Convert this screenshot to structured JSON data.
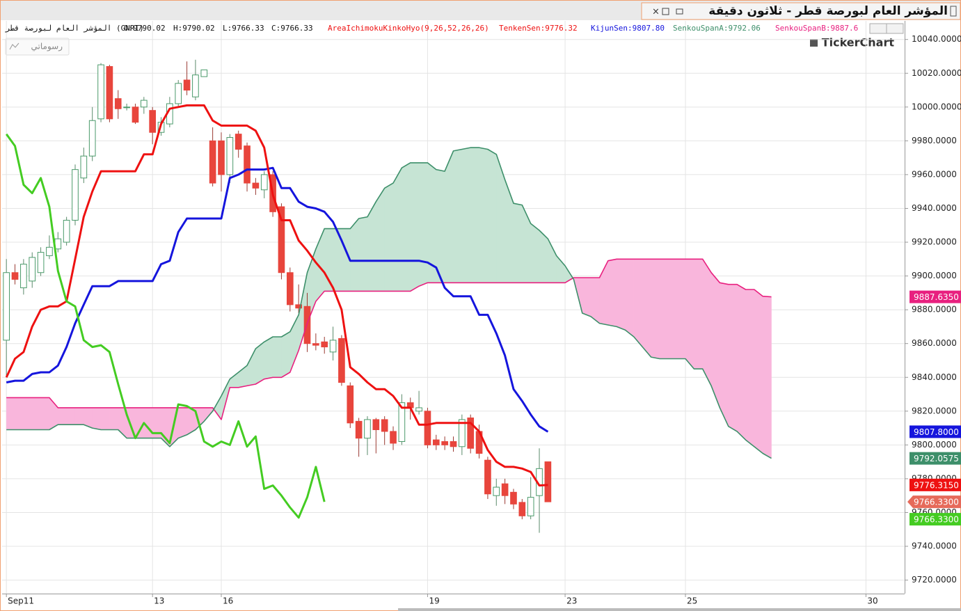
{
  "chart_data": {
    "type": "candlestick",
    "title": "المؤشر العام لبورصة قطر - ثلاثون دقيقة",
    "button": "رسوماتي",
    "logo": "TickerChart",
    "info": [
      "المؤشر العام لبورصة قطر (GNRI)",
      "O:9790.02",
      "H:9790.02",
      "L:9766.33",
      "C:9766.33"
    ],
    "indicator": "AreaIchimokuKinkoHyo(9,26,52,26,26)",
    "indicator_color": "#ee1111",
    "up_color": "#4a9a6a",
    "down_color": "#e8453c",
    "cloud_colors": {
      "up": "#c6e4d4",
      "down": "#f9b6dc"
    },
    "grid": true,
    "xlim": [
      -0.5,
      104.5
    ],
    "ylim": [
      9712,
      10051
    ],
    "xticks": [
      {
        "value": 0,
        "label": "Sep11"
      },
      {
        "value": 17,
        "label": "13"
      },
      {
        "value": 25,
        "label": "16"
      },
      {
        "value": 49,
        "label": "19"
      },
      {
        "value": 65,
        "label": "23"
      },
      {
        "value": 79,
        "label": "25"
      },
      {
        "value": 100,
        "label": "30"
      }
    ],
    "yticks": [
      {
        "value": 9720,
        "label": "9720.0000"
      },
      {
        "value": 9740,
        "label": "9740.0000"
      },
      {
        "value": 9760,
        "label": "9760.0000"
      },
      {
        "value": 9780,
        "label": "9780.0000"
      },
      {
        "value": 9800,
        "label": "9800.0000"
      },
      {
        "value": 9820,
        "label": "9820.0000"
      },
      {
        "value": 9840,
        "label": "9840.0000"
      },
      {
        "value": 9860,
        "label": "9860.0000"
      },
      {
        "value": 9880,
        "label": "9880.0000"
      },
      {
        "value": 9900,
        "label": "9900.0000"
      },
      {
        "value": 9920,
        "label": "9920.0000"
      },
      {
        "value": 9940,
        "label": "9940.0000"
      },
      {
        "value": 9960,
        "label": "9960.0000"
      },
      {
        "value": 9980,
        "label": "9980.0000"
      },
      {
        "value": 10000,
        "label": "10000.0000"
      },
      {
        "value": 10020,
        "label": "10020.0000"
      },
      {
        "value": 10040,
        "label": "10040.0000"
      }
    ],
    "candles": {
      "last_label": "9766.3300",
      "label_color": "#e66a5a",
      "open": [
        9862,
        9902,
        9893,
        9897,
        9902,
        9912,
        9916,
        9920,
        9933,
        9958,
        9971,
        9993,
        10024,
        10005,
        10000,
        10000,
        10000,
        9998,
        9985,
        9990,
        10002,
        10016,
        10006,
        10018,
        9980,
        9980,
        9960,
        9984,
        9977,
        9955,
        9951,
        9960,
        9941,
        9902,
        9883,
        9882,
        9860,
        9861,
        9855,
        9863,
        9835,
        9814,
        9804,
        9815,
        9815,
        9808,
        9802,
        9825,
        9820,
        9820,
        9803,
        9802,
        9802,
        9799,
        9816,
        9808,
        9791,
        9770,
        9777,
        9772,
        9766,
        9758,
        9770,
        9790.02,
        null,
        null,
        null,
        null,
        null,
        null,
        null,
        null,
        null,
        null,
        null,
        null,
        null,
        null,
        null,
        null,
        null,
        null,
        null,
        null,
        null,
        null,
        null,
        null,
        null,
        null
      ],
      "high": [
        9910,
        9907,
        9910,
        9914,
        9917,
        9924,
        9926,
        9935,
        9966,
        9976,
        10000,
        10026,
        10025,
        10010,
        10002,
        10002,
        10006,
        10000,
        9994,
        10006,
        10016,
        10027,
        10028,
        10022,
        9988,
        9985,
        9984,
        9986,
        9979,
        9958,
        9962,
        9962,
        9943,
        9905,
        9895,
        9890,
        9866,
        9864,
        9870,
        9865,
        9837,
        9816,
        9817,
        9816,
        9817,
        9811,
        9830,
        9828,
        9832,
        9822,
        9806,
        9805,
        9805,
        9818,
        9818,
        9812,
        9793,
        9780,
        9780,
        9774,
        9768,
        9781,
        9798,
        9790.02,
        null,
        null,
        null,
        null,
        null,
        null,
        null,
        null,
        null,
        null,
        null,
        null,
        null,
        null,
        null,
        null,
        null,
        null,
        null,
        null,
        null,
        null,
        null,
        null,
        null,
        null
      ],
      "low": [
        9840,
        9895,
        9889,
        9893,
        9900,
        9910,
        9914,
        9918,
        9930,
        9955,
        9968,
        9991,
        9991,
        9993,
        9998,
        9990,
        9996,
        9978,
        9983,
        9988,
        10000,
        10007,
        10004,
        10018,
        9953,
        9950,
        9955,
        9970,
        9950,
        9948,
        9946,
        9935,
        9898,
        9879,
        9878,
        9855,
        9856,
        9854,
        9850,
        9835,
        9810,
        9793,
        9794,
        9795,
        9800,
        9797,
        9800,
        9815,
        9818,
        9798,
        9797,
        9797,
        9796,
        9794,
        9795,
        9792,
        9768,
        9764,
        9765,
        9762,
        9756,
        9756,
        9748,
        9766.33,
        null,
        null,
        null,
        null,
        null,
        null,
        null,
        null,
        null,
        null,
        null,
        null,
        null,
        null,
        null,
        null,
        null,
        null,
        null,
        null,
        null,
        null,
        null,
        null,
        null,
        null
      ],
      "close": [
        9902,
        9898,
        9907,
        9911,
        9914,
        9917,
        9922,
        9933,
        9963,
        9971,
        9992,
        10025,
        9993,
        9999,
        10000,
        9991,
        10004,
        9985,
        9991,
        10002,
        10014,
        10010,
        10019,
        10022,
        9955,
        9960,
        9982,
        9975,
        9955,
        9952,
        9960,
        9938,
        9902,
        9883,
        9881,
        9860,
        9859,
        9858,
        9862,
        9837,
        9813,
        9804,
        9815,
        9809,
        9808,
        9801,
        9825,
        9822,
        9822,
        9800,
        9800,
        9800,
        9799,
        9815,
        9798,
        9795,
        9771,
        9775,
        9770,
        9765,
        9758,
        9769,
        9786,
        9766.33,
        null,
        null,
        null,
        null,
        null,
        null,
        null,
        null,
        null,
        null,
        null,
        null,
        null,
        null,
        null,
        null,
        null,
        null,
        null,
        null,
        null,
        null,
        null,
        null,
        null,
        null
      ]
    },
    "series": [
      {
        "name": "SenkouSpanB:9887.6",
        "color": "#e8207f",
        "last_label": "9887.6350",
        "values": [
          9828,
          9828,
          9828,
          9828,
          9828,
          9828,
          9822,
          9822,
          9822,
          9822,
          9822,
          9822,
          9822,
          9822,
          9822,
          9822,
          9822,
          9822,
          9822,
          9822,
          9822,
          9822,
          9822,
          9822,
          9822,
          9815,
          9834,
          9834,
          9835,
          9836,
          9839,
          9840,
          9840,
          9843,
          9856,
          9872,
          9885,
          9891,
          9891,
          9891,
          9891,
          9891,
          9891,
          9891,
          9891,
          9891,
          9891,
          9891,
          9894,
          9896,
          9896,
          9896,
          9896,
          9896,
          9896,
          9896,
          9896,
          9896,
          9896,
          9896,
          9896,
          9896,
          9896,
          9896,
          9896,
          9896,
          9899,
          9899,
          9899,
          9899,
          9909,
          9910,
          9910,
          9910,
          9910,
          9910,
          9910,
          9910,
          9910,
          9910,
          9910,
          9910,
          9902,
          9896,
          9895,
          9895,
          9892,
          9892,
          9888,
          9887.635
        ]
      },
      {
        "name": "SenkouSpanA:9792.06",
        "color": "#3d8f6a",
        "last_label": "9792.0575",
        "values": [
          9809,
          9809,
          9809,
          9809,
          9809,
          9809,
          9812,
          9812,
          9812,
          9812,
          9810,
          9809,
          9809,
          9809,
          9804,
          9804,
          9804,
          9804,
          9804,
          9799,
          9804,
          9806,
          9809,
          9814,
          9820,
          9829,
          9839,
          9843,
          9847,
          9857,
          9861,
          9864,
          9864,
          9867,
          9877,
          9902,
          9916,
          9928,
          9928,
          9928,
          9928,
          9934,
          9935,
          9944,
          9952,
          9955,
          9964,
          9967,
          9967,
          9967,
          9963,
          9962,
          9974,
          9975,
          9976,
          9976,
          9975,
          9972,
          9957,
          9943,
          9942,
          9931,
          9927,
          9922,
          9912,
          9906,
          9898,
          9878,
          9876,
          9872,
          9871,
          9870,
          9868,
          9864,
          9858,
          9852,
          9851,
          9851,
          9851,
          9851,
          9845,
          9845,
          9835,
          9822,
          9811,
          9808,
          9803,
          9799,
          9795,
          9792.0575
        ]
      },
      {
        "name": "KijunSen:9807.80",
        "color": "#1515dd",
        "last_label": "9807.8000",
        "values": [
          9837,
          9838,
          9838,
          9842,
          9843,
          9843,
          9847,
          9858,
          9872,
          9883,
          9894,
          9894,
          9894,
          9897,
          9897,
          9897,
          9897,
          9897,
          9907,
          9909,
          9926,
          9934,
          9934,
          9934,
          9934,
          9934,
          9958,
          9960,
          9963,
          9963,
          9963,
          9964,
          9952,
          9952,
          9944,
          9941,
          9940,
          9938,
          9932,
          9921,
          9909,
          9909,
          9909,
          9909,
          9909,
          9909,
          9909,
          9909,
          9909,
          9908,
          9905,
          9893,
          9888,
          9888,
          9888,
          9877,
          9877,
          9866,
          9853,
          9833,
          9826,
          9818,
          9811,
          9807.8,
          null,
          null,
          null,
          null,
          null,
          null,
          null,
          null,
          null,
          null,
          null,
          null,
          null,
          null,
          null,
          null,
          null,
          null,
          null,
          null,
          null,
          null,
          null,
          null,
          null,
          null
        ]
      },
      {
        "name": "TenkenSen:9776.32",
        "color": "#ee1111",
        "last_label": "9776.3150",
        "values": [
          9840,
          9851,
          9855,
          9870,
          9880,
          9882,
          9882,
          9885,
          9910,
          9935,
          9950,
          9962,
          9962,
          9962,
          9962,
          9962,
          9972,
          9972,
          9990,
          9999,
          10000,
          10001,
          10001,
          10001,
          9992,
          9989,
          9989,
          9989,
          9989,
          9986,
          9976,
          9948,
          9933,
          9933,
          9921,
          9915,
          9908,
          9902,
          9893,
          9880,
          9846,
          9842,
          9837,
          9833,
          9833,
          9829,
          9822,
          9822,
          9812,
          9812,
          9813,
          9813,
          9813,
          9813,
          9813,
          9808,
          9797,
          9790,
          9787,
          9787,
          9786,
          9784,
          9776,
          9776.315,
          null,
          null,
          null,
          null,
          null,
          null,
          null,
          null,
          null,
          null,
          null,
          null,
          null,
          null,
          null,
          null,
          null,
          null,
          null,
          null,
          null,
          null,
          null,
          null,
          null,
          null
        ]
      },
      {
        "color": "#44cc22",
        "last_label": "9766.3300",
        "values": [
          9984,
          9977,
          9954,
          9949,
          9958,
          9941,
          9903,
          9885,
          9882,
          9862,
          9858,
          9859,
          9855,
          9836,
          9818,
          9804,
          9813,
          9807,
          9807,
          9801,
          9824,
          9823,
          9820,
          9802,
          9799,
          9802,
          9800,
          9814,
          9799,
          9805,
          9774,
          9776,
          9770,
          9763,
          9757,
          9769,
          9787,
          9766.33,
          null,
          null,
          null,
          null,
          null,
          null,
          null,
          null,
          null,
          null,
          null,
          null,
          null,
          null,
          null,
          null,
          null,
          null,
          null,
          null,
          null,
          null,
          null,
          null,
          null,
          null,
          null,
          null,
          null,
          null,
          null,
          null,
          null,
          null,
          null,
          null,
          null,
          null,
          null,
          null,
          null,
          null,
          null,
          null,
          null,
          null,
          null,
          null,
          null,
          null,
          null,
          null
        ]
      }
    ]
  }
}
